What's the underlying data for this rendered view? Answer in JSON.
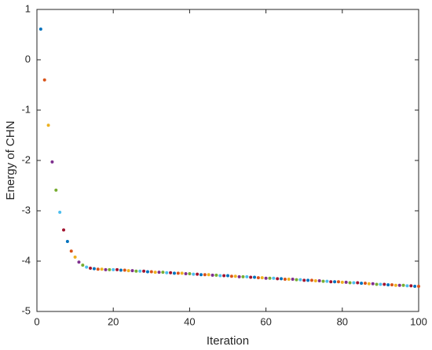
{
  "chart_data": {
    "type": "scatter",
    "x_label": "Iteration",
    "y_label": "Energy of CHN",
    "x": [
      1,
      2,
      3,
      4,
      5,
      6,
      7,
      8,
      9,
      10,
      11,
      12,
      13,
      14,
      15,
      16,
      17,
      18,
      19,
      20,
      21,
      22,
      23,
      24,
      25,
      26,
      27,
      28,
      29,
      30,
      31,
      32,
      33,
      34,
      35,
      36,
      37,
      38,
      39,
      40,
      41,
      42,
      43,
      44,
      45,
      46,
      47,
      48,
      49,
      50,
      51,
      52,
      53,
      54,
      55,
      56,
      57,
      58,
      59,
      60,
      61,
      62,
      63,
      64,
      65,
      66,
      67,
      68,
      69,
      70,
      71,
      72,
      73,
      74,
      75,
      76,
      77,
      78,
      79,
      80,
      81,
      82,
      83,
      84,
      85,
      86,
      87,
      88,
      89,
      90,
      91,
      92,
      93,
      94,
      95,
      96,
      97,
      98,
      99,
      100
    ],
    "values": [
      0.61,
      -0.4,
      -1.3,
      -2.03,
      -2.59,
      -3.03,
      -3.38,
      -3.61,
      -3.8,
      -3.92,
      -4.02,
      -4.08,
      -4.12,
      -4.14,
      -4.15,
      -4.16,
      -4.16,
      -4.17,
      -4.17,
      -4.17,
      -4.17,
      -4.18,
      -4.18,
      -4.19,
      -4.19,
      -4.2,
      -4.2,
      -4.2,
      -4.21,
      -4.21,
      -4.22,
      -4.22,
      -4.22,
      -4.23,
      -4.23,
      -4.24,
      -4.24,
      -4.24,
      -4.25,
      -4.25,
      -4.26,
      -4.26,
      -4.27,
      -4.27,
      -4.27,
      -4.28,
      -4.28,
      -4.29,
      -4.29,
      -4.29,
      -4.3,
      -4.3,
      -4.31,
      -4.31,
      -4.31,
      -4.32,
      -4.32,
      -4.33,
      -4.33,
      -4.34,
      -4.34,
      -4.34,
      -4.35,
      -4.35,
      -4.36,
      -4.36,
      -4.36,
      -4.37,
      -4.37,
      -4.38,
      -4.38,
      -4.38,
      -4.39,
      -4.39,
      -4.4,
      -4.4,
      -4.41,
      -4.41,
      -4.41,
      -4.42,
      -4.42,
      -4.43,
      -4.43,
      -4.43,
      -4.44,
      -4.44,
      -4.45,
      -4.45,
      -4.46,
      -4.46,
      -4.46,
      -4.47,
      -4.47,
      -4.48,
      -4.48,
      -4.48,
      -4.49,
      -4.49,
      -4.5,
      -4.5
    ],
    "color_cycle": [
      "#0072BD",
      "#D95319",
      "#EDB120",
      "#7E2F8E",
      "#77AC30",
      "#4DBEEE",
      "#A2142F"
    ],
    "xlim": [
      0,
      100
    ],
    "xticks": [
      0,
      20,
      40,
      60,
      80,
      100
    ],
    "ylim": [
      -5,
      1
    ],
    "yticks": [
      -5,
      -4,
      -3,
      -2,
      -1,
      0,
      1
    ]
  }
}
